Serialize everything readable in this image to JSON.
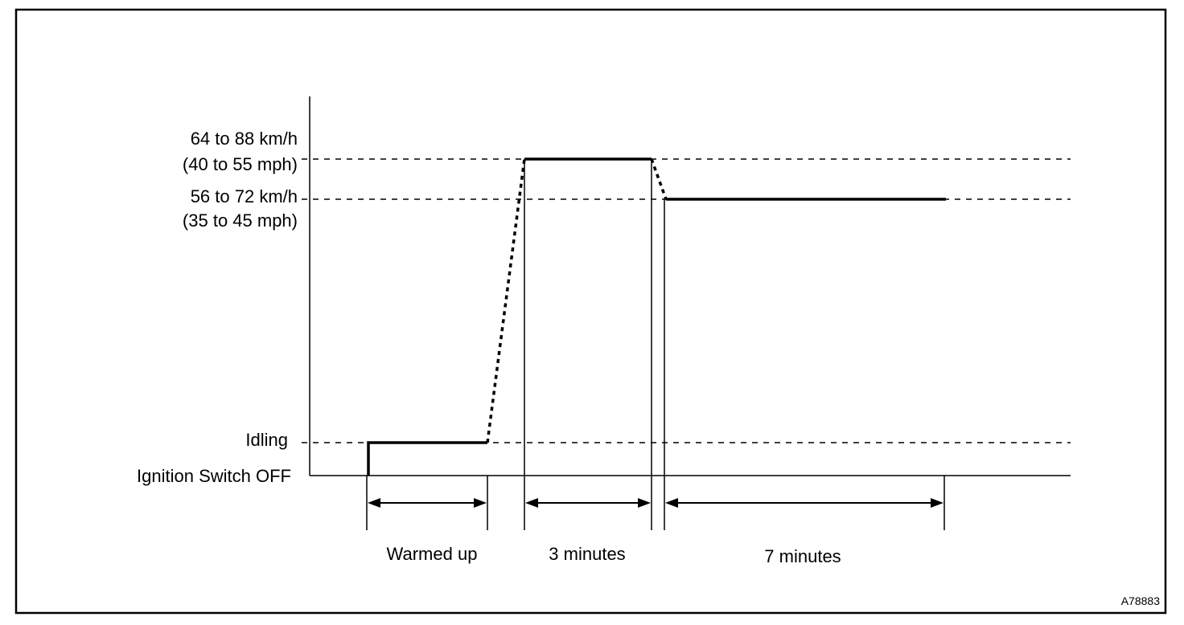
{
  "colors": {
    "line": "#000000",
    "background": "#ffffff"
  },
  "levels": {
    "high": {
      "line1": "64 to 88 km/h",
      "line2": "(40 to 55 mph)"
    },
    "mid": {
      "line1": "56 to 72 km/h",
      "line2": "(35 to 45 mph)"
    },
    "idling": "Idling",
    "ignition_off": "Ignition Switch OFF"
  },
  "phases": [
    {
      "id": "warmed-up",
      "label": "Warmed up"
    },
    {
      "id": "three-minutes",
      "label": "3 minutes"
    },
    {
      "id": "seven-minutes",
      "label": "7 minutes"
    }
  ],
  "figure_code": "A78883"
}
